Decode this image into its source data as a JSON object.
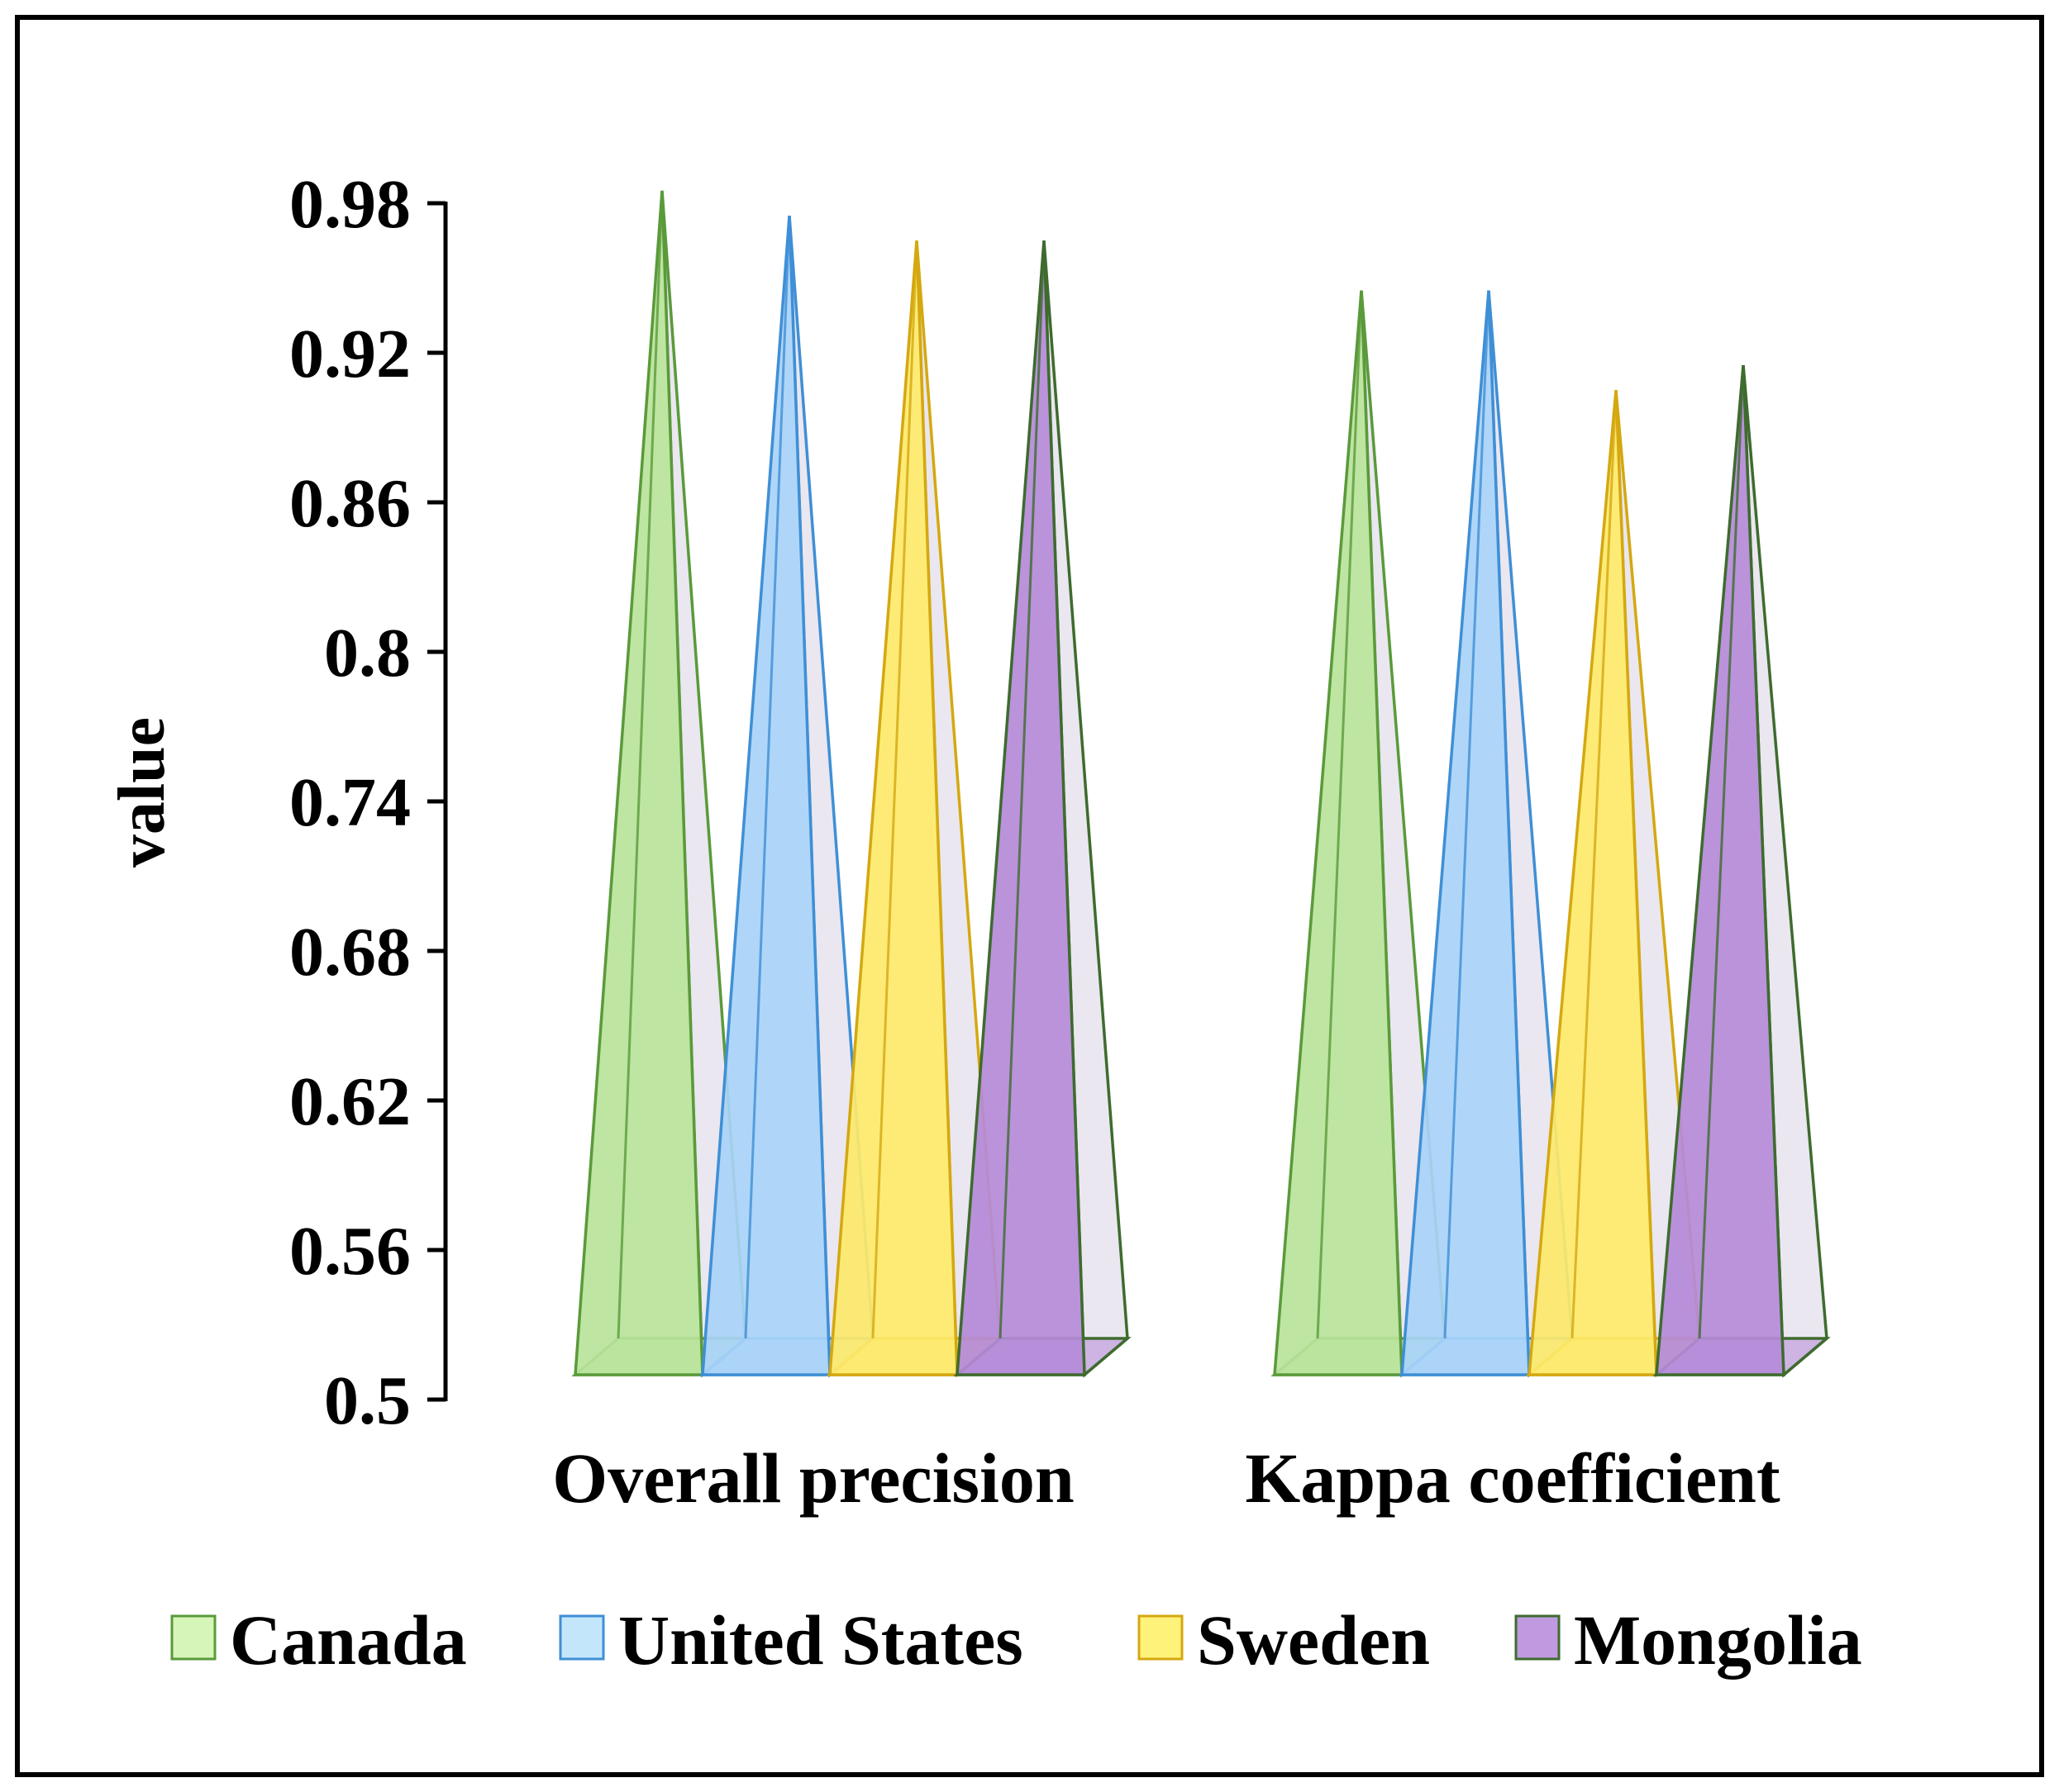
{
  "chart_data": {
    "type": "bar",
    "style": "3d-pyramid",
    "title": "",
    "xlabel": "",
    "ylabel": "value",
    "ylim": [
      0.5,
      0.98
    ],
    "yticks": [
      0.5,
      0.56,
      0.62,
      0.68,
      0.74,
      0.8,
      0.86,
      0.92,
      0.98
    ],
    "ytick_labels": [
      "0.5",
      "0.56",
      "0.62",
      "0.68",
      "0.74",
      "0.8",
      "0.86",
      "0.92",
      "0.98"
    ],
    "grid": false,
    "legend_position": "bottom",
    "categories": [
      "Overall precision",
      "Kappa coefficient"
    ],
    "series": [
      {
        "name": "Canada",
        "values": [
          0.985,
          0.945
        ],
        "color": "#b9e39a",
        "edge": "#5a9a3a",
        "legend_fill": "#d6f5b8"
      },
      {
        "name": "United States",
        "values": [
          0.975,
          0.945
        ],
        "color": "#a8d3f7",
        "edge": "#3f8fd6",
        "legend_fill": "#c4e6fb"
      },
      {
        "name": "Sweden",
        "values": [
          0.965,
          0.905
        ],
        "color": "#fde96a",
        "edge": "#d4a810",
        "legend_fill": "#fff27a"
      },
      {
        "name": "Mongolia",
        "values": [
          0.965,
          0.915
        ],
        "color": "#b48ad8",
        "edge": "#3e6b2e",
        "legend_fill": "#c09ae0"
      }
    ]
  }
}
